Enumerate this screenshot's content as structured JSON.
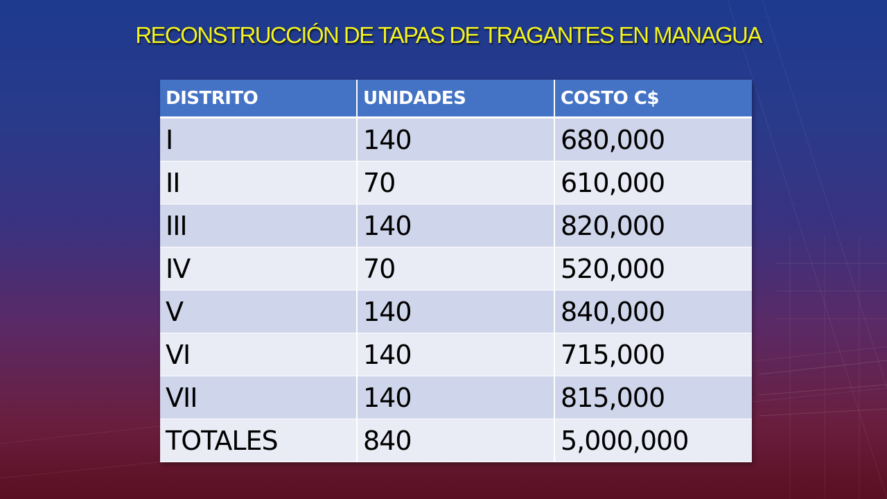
{
  "slide": {
    "title": "RECONSTRUCCIÓN DE TAPAS DE TRAGANTES EN  MANAGUA"
  },
  "table": {
    "headers": [
      "DISTRITO",
      "UNIDADES",
      "COSTO C$"
    ],
    "rows": [
      [
        "I",
        "140",
        "680,000"
      ],
      [
        "II",
        "70",
        "610,000"
      ],
      [
        "III",
        "140",
        "820,000"
      ],
      [
        "IV",
        "70",
        "520,000"
      ],
      [
        "V",
        "140",
        "840,000"
      ],
      [
        "VI",
        "140",
        "715,000"
      ],
      [
        "VII",
        "140",
        "815,000"
      ],
      [
        "TOTALES",
        "840",
        "5,000,000"
      ]
    ]
  },
  "colors": {
    "title": "#f3f321",
    "header_bg": "#4472c4",
    "row_odd": "#cfd5ea",
    "row_even": "#e9ebf5"
  }
}
